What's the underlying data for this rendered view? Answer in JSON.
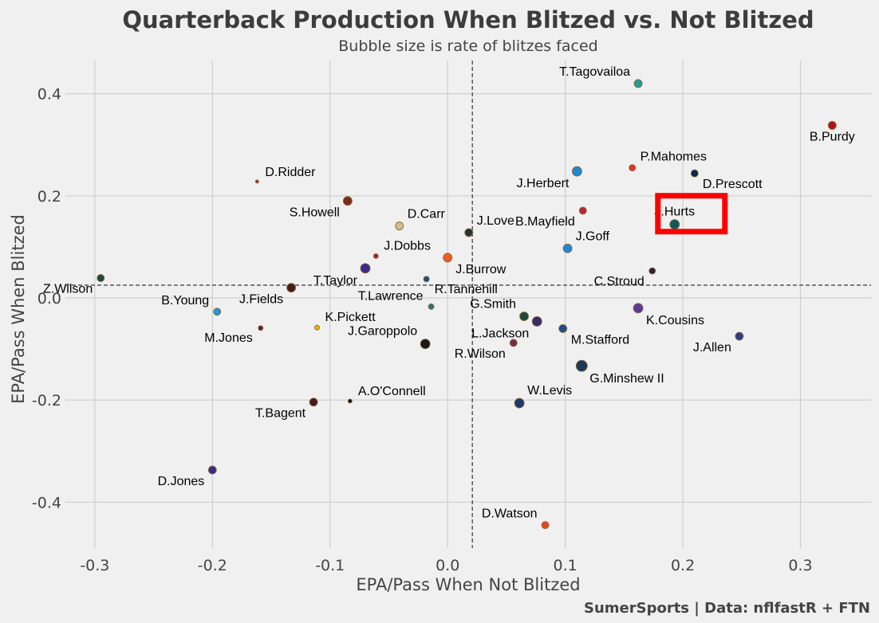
{
  "chart_data": {
    "type": "scatter",
    "title": "Quarterback Production When Blitzed vs. Not Blitzed",
    "subtitle": "Bubble size is rate of blitzes faced",
    "xlabel": "EPA/Pass When Not Blitzed",
    "ylabel": "EPA/Pass When Blitzed",
    "credit": "SumerSports | Data: nflfastR + FTN",
    "xlim": [
      -0.325,
      0.36
    ],
    "ylim": [
      -0.49,
      0.465
    ],
    "xticks": [
      {
        "value": -0.3,
        "label": "-0.3"
      },
      {
        "value": -0.2,
        "label": "-0.2"
      },
      {
        "value": -0.1,
        "label": "-0.1"
      },
      {
        "value": 0.0,
        "label": "0.0"
      },
      {
        "value": 0.1,
        "label": "0.1"
      },
      {
        "value": 0.2,
        "label": "0.2"
      },
      {
        "value": 0.3,
        "label": "0.3"
      }
    ],
    "yticks": [
      {
        "value": 0.4,
        "label": "0.4"
      },
      {
        "value": 0.2,
        "label": "0.2"
      },
      {
        "value": 0.0,
        "label": "0.0"
      },
      {
        "value": -0.2,
        "label": "-0.2"
      },
      {
        "value": -0.4,
        "label": "-0.4"
      }
    ],
    "grid": true,
    "reference_lines": {
      "x": 0.021,
      "y": 0.025
    },
    "highlight": "J.Hurts",
    "highlight_color": "#ff0000",
    "points": [
      {
        "name": "T.Tagovailoa",
        "x": 0.162,
        "y": 0.42,
        "size": 5,
        "color": "#1a9e9e",
        "label_dx": -1,
        "label_dy": -1
      },
      {
        "name": "B.Purdy",
        "x": 0.327,
        "y": 0.338,
        "size": 5,
        "color": "#b31313",
        "label_dx": 0,
        "label_dy": 1
      },
      {
        "name": "P.Mahomes",
        "x": 0.157,
        "y": 0.255,
        "size": 4,
        "color": "#e8351f",
        "label_dx": 1,
        "label_dy": -1
      },
      {
        "name": "D.Prescott",
        "x": 0.21,
        "y": 0.244,
        "size": 4.5,
        "color": "#0b2a4a",
        "label_dx": 1,
        "label_dy": 1
      },
      {
        "name": "J.Herbert",
        "x": 0.11,
        "y": 0.248,
        "size": 6,
        "color": "#1e88d2",
        "label_dx": -1,
        "label_dy": 1
      },
      {
        "name": "D.Ridder",
        "x": -0.162,
        "y": 0.228,
        "size": 2,
        "color": "#a4243b",
        "label_dx": 1,
        "label_dy": -1
      },
      {
        "name": "S.Howell",
        "x": -0.085,
        "y": 0.19,
        "size": 5.5,
        "color": "#7a2e17",
        "label_dx": -1,
        "label_dy": 1
      },
      {
        "name": "J.Hurts",
        "x": 0.193,
        "y": 0.144,
        "size": 6,
        "color": "#0e5a5a",
        "label_dx": 0,
        "label_dy": -1
      },
      {
        "name": "B.Mayfield",
        "x": 0.115,
        "y": 0.171,
        "size": 4.5,
        "color": "#b02a35",
        "label_dx": -1,
        "label_dy": 1
      },
      {
        "name": "D.Carr",
        "x": -0.041,
        "y": 0.141,
        "size": 5,
        "color": "#d3bc8d",
        "label_dx": 1,
        "label_dy": -1
      },
      {
        "name": "J.Love",
        "x": 0.018,
        "y": 0.128,
        "size": 5,
        "color": "#203731",
        "label_dx": 1,
        "label_dy": -1
      },
      {
        "name": "J.Goff",
        "x": 0.102,
        "y": 0.097,
        "size": 5.5,
        "color": "#1e88d2",
        "label_dx": 1,
        "label_dy": -1
      },
      {
        "name": "J.Dobbs",
        "x": -0.061,
        "y": 0.082,
        "size": 3,
        "color": "#a4243b",
        "label_dx": 1,
        "label_dy": -1
      },
      {
        "name": "J.Burrow",
        "x": 0.0,
        "y": 0.079,
        "size": 5.5,
        "color": "#f05a22",
        "label_dx": 1,
        "label_dy": 1
      },
      {
        "name": "T.Taylor",
        "x": -0.07,
        "y": 0.058,
        "size": 6,
        "color": "#3e2a87",
        "label_dx": -1,
        "label_dy": 1
      },
      {
        "name": "C.Stroud",
        "x": 0.174,
        "y": 0.053,
        "size": 4,
        "color": "#2b1f3a",
        "label_dx": -1,
        "label_dy": 1
      },
      {
        "name": "R.Tannehill",
        "x": -0.018,
        "y": 0.037,
        "size": 3.5,
        "color": "#1b4e8a",
        "label_dx": 1,
        "label_dy": 1
      },
      {
        "name": "Z.Wilson",
        "x": -0.295,
        "y": 0.039,
        "size": 4.5,
        "color": "#1a4a3a",
        "label_dx": -1,
        "label_dy": 1
      },
      {
        "name": "J.Fields",
        "x": -0.133,
        "y": 0.02,
        "size": 5.5,
        "color": "#4a1a1a",
        "label_dx": -1,
        "label_dy": 1
      },
      {
        "name": "T.Lawrence",
        "x": -0.014,
        "y": -0.017,
        "size": 3.5,
        "color": "#1a7a82",
        "label_dx": -1,
        "label_dy": -1
      },
      {
        "name": "K.Cousins",
        "x": 0.162,
        "y": -0.02,
        "size": 6,
        "color": "#5a3b9a",
        "label_dx": 1,
        "label_dy": 1
      },
      {
        "name": "B.Young",
        "x": -0.196,
        "y": -0.027,
        "size": 4.5,
        "color": "#1e9bd8",
        "label_dx": -1,
        "label_dy": -1
      },
      {
        "name": "G.Smith",
        "x": 0.065,
        "y": -0.036,
        "size": 5.5,
        "color": "#1a4a3a",
        "label_dx": -1,
        "label_dy": -1
      },
      {
        "name": "J.Allen",
        "x": 0.248,
        "y": -0.075,
        "size": 5,
        "color": "#2e3a8a",
        "label_dx": -1,
        "label_dy": 1
      },
      {
        "name": "M.Jones",
        "x": -0.159,
        "y": -0.059,
        "size": 3,
        "color": "#5a1e3a",
        "label_dx": -1,
        "label_dy": 1
      },
      {
        "name": "K.Pickett",
        "x": -0.111,
        "y": -0.058,
        "size": 3,
        "color": "#e8b800",
        "label_dx": 1,
        "label_dy": -1
      },
      {
        "name": "L.Jackson",
        "x": 0.076,
        "y": -0.046,
        "size": 6,
        "color": "#3a2a6a",
        "label_dx": -1,
        "label_dy": 1
      },
      {
        "name": "M.Stafford",
        "x": 0.098,
        "y": -0.06,
        "size": 5,
        "color": "#1b4e8a",
        "label_dx": 1,
        "label_dy": 1
      },
      {
        "name": "J.Garoppolo",
        "x": -0.019,
        "y": -0.09,
        "size": 6,
        "color": "#1a1a1a",
        "label_dx": -1,
        "label_dy": -1
      },
      {
        "name": "R.Wilson",
        "x": 0.056,
        "y": -0.088,
        "size": 4.5,
        "color": "#7a2a4a",
        "label_dx": -1,
        "label_dy": 1
      },
      {
        "name": "G.Minshew II",
        "x": 0.114,
        "y": -0.133,
        "size": 7,
        "color": "#1a3a5a",
        "label_dx": 1,
        "label_dy": 1
      },
      {
        "name": "A.O'Connell",
        "x": -0.083,
        "y": -0.202,
        "size": 2.5,
        "color": "#111111",
        "label_dx": 1,
        "label_dy": -1
      },
      {
        "name": "T.Bagent",
        "x": -0.114,
        "y": -0.204,
        "size": 5,
        "color": "#4a1a1a",
        "label_dx": -1,
        "label_dy": 1
      },
      {
        "name": "W.Levis",
        "x": 0.061,
        "y": -0.206,
        "size": 6,
        "color": "#1a3a6a",
        "label_dx": 1,
        "label_dy": -1
      },
      {
        "name": "D.Jones",
        "x": -0.2,
        "y": -0.337,
        "size": 5,
        "color": "#3a2a8a",
        "label_dx": -1,
        "label_dy": 1
      },
      {
        "name": "D.Watson",
        "x": 0.083,
        "y": -0.445,
        "size": 4.5,
        "color": "#e8441f",
        "label_dx": -1,
        "label_dy": -1
      }
    ]
  }
}
